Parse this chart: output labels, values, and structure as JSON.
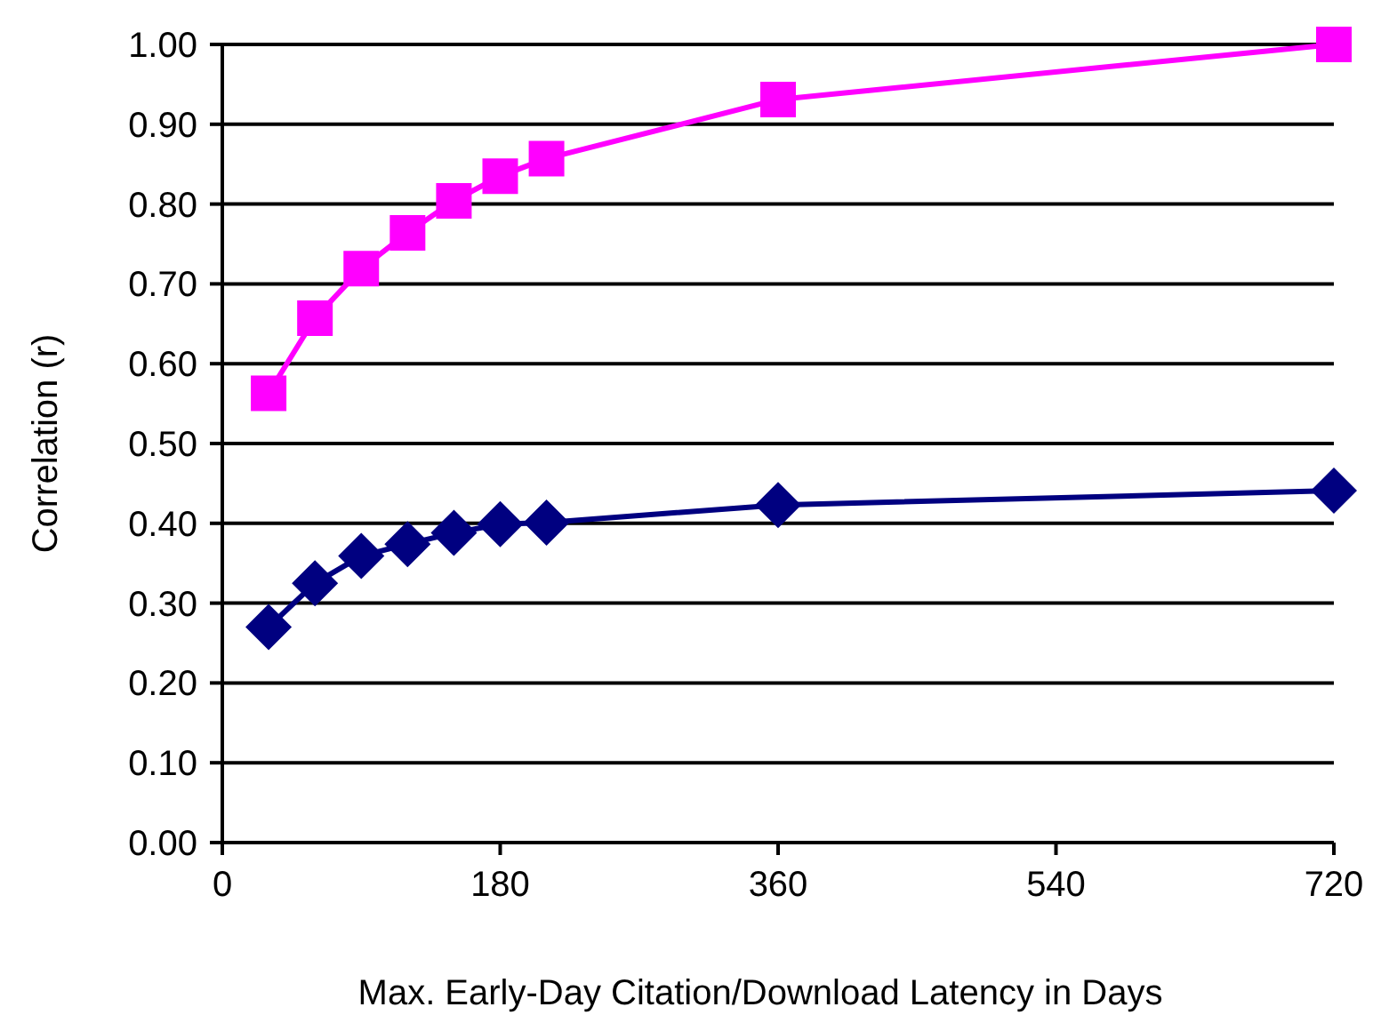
{
  "chart_data": {
    "type": "line",
    "xlabel": "Max. Early-Day Citation/Download Latency in Days",
    "ylabel": "Correlation (r)",
    "xlim": [
      0,
      720
    ],
    "xticks": [
      0,
      180,
      360,
      540,
      720
    ],
    "ylim": [
      0,
      1
    ],
    "yticks": [
      {
        "value": 0,
        "label": "0.00"
      },
      {
        "value": 0.1,
        "label": "0.10"
      },
      {
        "value": 0.2,
        "label": "0.20"
      },
      {
        "value": 0.3,
        "label": "0.30"
      },
      {
        "value": 0.4,
        "label": "0.40"
      },
      {
        "value": 0.5,
        "label": "0.50"
      },
      {
        "value": 0.6,
        "label": "0.60"
      },
      {
        "value": 0.7,
        "label": "0.70"
      },
      {
        "value": 0.8,
        "label": "0.80"
      },
      {
        "value": 0.9,
        "label": "0.90"
      },
      {
        "value": 1,
        "label": "1.00"
      }
    ],
    "grid": "y",
    "series": [
      {
        "color": "#ff00ff",
        "marker": "square",
        "x": [
          30,
          60,
          90,
          120,
          150,
          180,
          210,
          360,
          720
        ],
        "values": [
          0.563,
          0.657,
          0.719,
          0.764,
          0.804,
          0.835,
          0.857,
          0.931,
          1.0
        ]
      },
      {
        "color": "#000080",
        "marker": "diamond",
        "x": [
          30,
          60,
          90,
          120,
          150,
          180,
          210,
          360,
          720
        ],
        "values": [
          0.27,
          0.325,
          0.359,
          0.374,
          0.388,
          0.399,
          0.401,
          0.423,
          0.441
        ]
      }
    ]
  }
}
